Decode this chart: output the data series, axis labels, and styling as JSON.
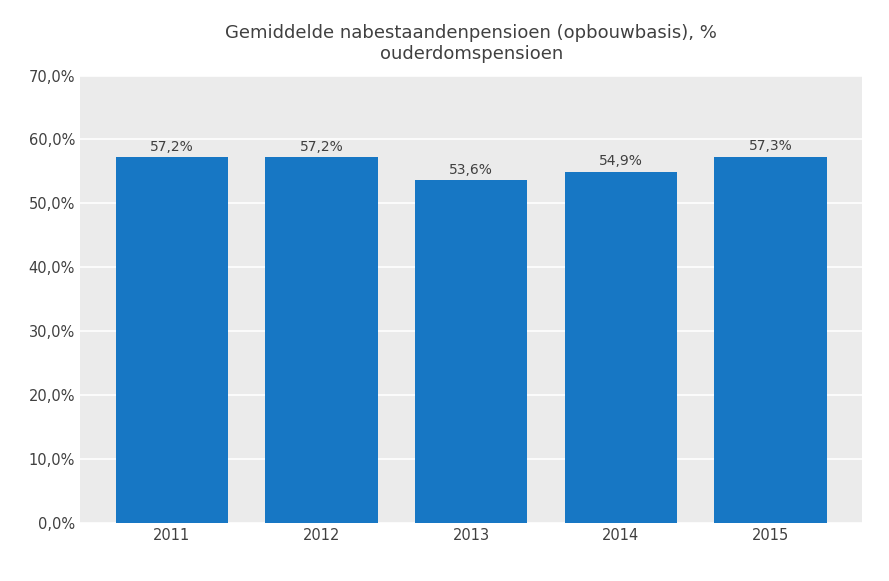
{
  "categories": [
    "2011",
    "2012",
    "2013",
    "2014",
    "2015"
  ],
  "values": [
    57.2,
    57.2,
    53.6,
    54.9,
    57.3
  ],
  "labels": [
    "57,2%",
    "57,2%",
    "53,6%",
    "54,9%",
    "57,3%"
  ],
  "bar_color": "#1777c4",
  "title_line1": "Gemiddelde nabestaandenpensioen (opbouwbasis), %",
  "title_line2": "ouderdomspensioen",
  "ylim": [
    0,
    70
  ],
  "ytick_values": [
    0,
    10,
    20,
    30,
    40,
    50,
    60,
    70
  ],
  "plot_bg_color": "#ebebeb",
  "figure_background": "#ffffff",
  "title_fontsize": 13,
  "label_fontsize": 10,
  "tick_fontsize": 10.5,
  "grid_color": "#ffffff",
  "text_color": "#404040"
}
